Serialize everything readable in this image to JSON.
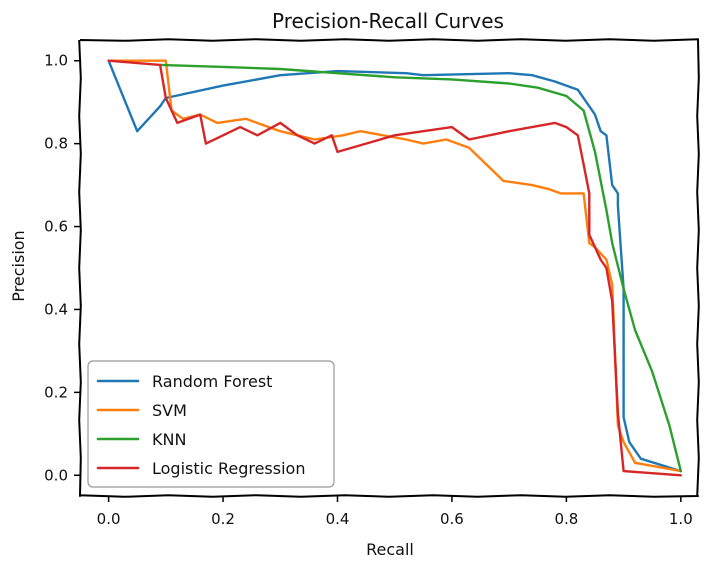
{
  "chart_data": {
    "type": "line",
    "title": "Precision-Recall Curves",
    "xlabel": "Recall",
    "ylabel": "Precision",
    "xlim": [
      -0.05,
      1.03
    ],
    "ylim": [
      -0.05,
      1.05
    ],
    "xticks": [
      "0.0",
      "0.2",
      "0.4",
      "0.6",
      "0.8",
      "1.0"
    ],
    "yticks": [
      "0.0",
      "0.2",
      "0.4",
      "0.6",
      "0.8",
      "1.0"
    ],
    "grid": false,
    "legend_position": "lower-left",
    "style": "xkcd-sketch",
    "series": [
      {
        "name": "Random Forest",
        "color": "#1f77b4",
        "x": [
          0.0,
          0.05,
          0.09,
          0.1,
          0.2,
          0.3,
          0.4,
          0.52,
          0.55,
          0.7,
          0.74,
          0.78,
          0.82,
          0.84,
          0.85,
          0.86,
          0.87,
          0.88,
          0.89,
          0.89,
          0.9,
          0.9,
          0.91,
          0.93,
          1.0
        ],
        "y": [
          1.0,
          0.83,
          0.89,
          0.91,
          0.94,
          0.965,
          0.975,
          0.97,
          0.965,
          0.97,
          0.965,
          0.95,
          0.93,
          0.89,
          0.87,
          0.83,
          0.82,
          0.7,
          0.68,
          0.65,
          0.45,
          0.14,
          0.08,
          0.04,
          0.01
        ]
      },
      {
        "name": "SVM",
        "color": "#ff7f0e",
        "x": [
          0.0,
          0.1,
          0.11,
          0.13,
          0.16,
          0.19,
          0.24,
          0.28,
          0.3,
          0.33,
          0.36,
          0.41,
          0.44,
          0.52,
          0.55,
          0.59,
          0.63,
          0.66,
          0.69,
          0.74,
          0.77,
          0.79,
          0.83,
          0.84,
          0.85,
          0.87,
          0.88,
          0.89,
          0.9,
          0.92,
          1.0
        ],
        "y": [
          1.0,
          1.0,
          0.88,
          0.86,
          0.87,
          0.85,
          0.86,
          0.84,
          0.83,
          0.82,
          0.81,
          0.82,
          0.83,
          0.81,
          0.8,
          0.81,
          0.79,
          0.75,
          0.71,
          0.7,
          0.69,
          0.68,
          0.68,
          0.56,
          0.55,
          0.52,
          0.46,
          0.12,
          0.08,
          0.03,
          0.01
        ]
      },
      {
        "name": "KNN",
        "color": "#2ca02c",
        "x": [
          0.09,
          0.2,
          0.3,
          0.4,
          0.5,
          0.6,
          0.7,
          0.75,
          0.8,
          0.83,
          0.85,
          0.87,
          0.88,
          0.9,
          0.92,
          0.95,
          0.98,
          1.0
        ],
        "y": [
          0.99,
          0.985,
          0.98,
          0.97,
          0.96,
          0.955,
          0.945,
          0.935,
          0.915,
          0.88,
          0.78,
          0.64,
          0.56,
          0.45,
          0.35,
          0.25,
          0.12,
          0.01
        ]
      },
      {
        "name": "Logistic Regression",
        "color": "#d62728",
        "x": [
          0.0,
          0.09,
          0.1,
          0.12,
          0.16,
          0.17,
          0.2,
          0.23,
          0.26,
          0.3,
          0.33,
          0.36,
          0.39,
          0.4,
          0.45,
          0.5,
          0.55,
          0.6,
          0.63,
          0.7,
          0.78,
          0.8,
          0.82,
          0.83,
          0.84,
          0.84,
          0.85,
          0.86,
          0.87,
          0.88,
          0.89,
          0.9,
          0.95,
          1.0
        ],
        "y": [
          1.0,
          0.99,
          0.91,
          0.85,
          0.87,
          0.8,
          0.82,
          0.84,
          0.82,
          0.85,
          0.82,
          0.8,
          0.82,
          0.78,
          0.8,
          0.82,
          0.83,
          0.84,
          0.81,
          0.83,
          0.85,
          0.84,
          0.82,
          0.75,
          0.68,
          0.58,
          0.55,
          0.52,
          0.5,
          0.42,
          0.15,
          0.01,
          0.005,
          0.0
        ]
      }
    ]
  }
}
